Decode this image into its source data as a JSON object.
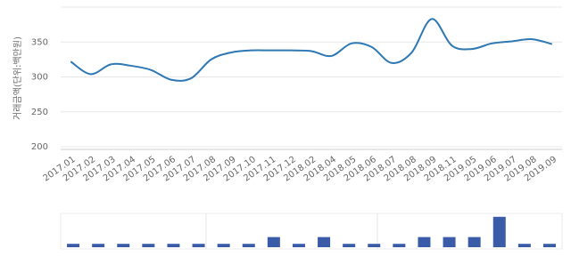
{
  "chart_data": [
    {
      "type": "line",
      "y_label": "거래금액(단위:백만원)",
      "categories": [
        "2017.01",
        "2017.02",
        "2017.03",
        "2017.04",
        "2017.05",
        "2017.06",
        "2017.07",
        "2017.08",
        "2017.09",
        "2017.10",
        "2017.11",
        "2017.12",
        "2018.02",
        "2018.04",
        "2018.05",
        "2018.06",
        "2018.07",
        "2018.08",
        "2018.09",
        "2018.11",
        "2019.05",
        "2019.06",
        "2019.07",
        "2019.08",
        "2019.09"
      ],
      "values": [
        322,
        304,
        318,
        316,
        310,
        296,
        298,
        325,
        335,
        338,
        338,
        338,
        337,
        330,
        348,
        343,
        320,
        335,
        383,
        345,
        340,
        348,
        351,
        354,
        347
      ],
      "color": "#2e78b4",
      "ylim": [
        200,
        400
      ],
      "yticks": [
        200,
        250,
        300,
        350
      ],
      "grid": true
    },
    {
      "type": "bar",
      "categories": [
        null,
        null,
        null,
        null,
        null,
        null,
        null,
        null,
        null,
        null,
        null,
        null,
        null,
        null,
        null,
        null,
        null,
        null,
        null,
        null
      ],
      "values": [
        1,
        1,
        1,
        1,
        1,
        1,
        1,
        1,
        3,
        1,
        3,
        1,
        1,
        1,
        3,
        3,
        3,
        9,
        1,
        1
      ],
      "color": "#3a5ba8",
      "ylim": [
        0,
        10
      ]
    }
  ]
}
